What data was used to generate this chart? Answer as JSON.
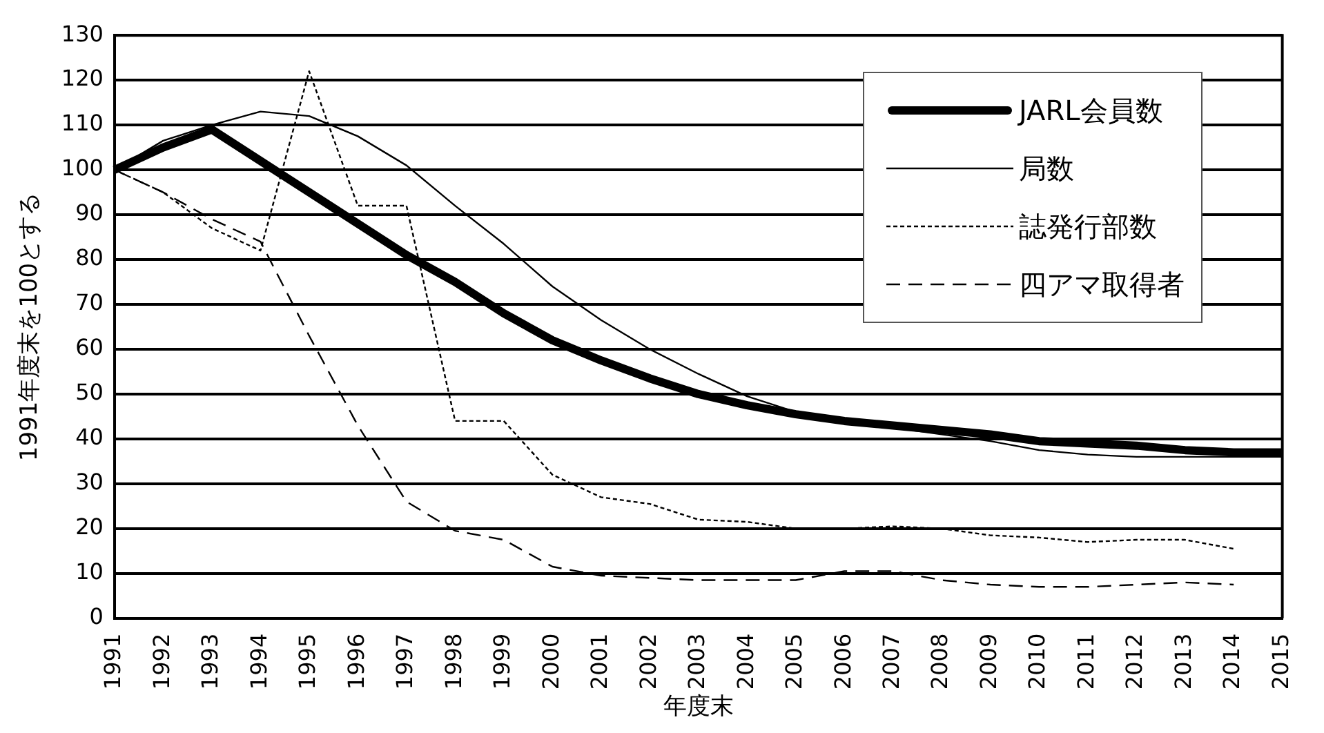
{
  "chart_data": {
    "type": "line",
    "xlabel": "年度末",
    "ylabel": "1991年度末を100とする",
    "categories": [
      "1991",
      "1992",
      "1993",
      "1994",
      "1995",
      "1996",
      "1997",
      "1998",
      "1999",
      "2000",
      "2001",
      "2002",
      "2003",
      "2004",
      "2005",
      "2006",
      "2007",
      "2008",
      "2009",
      "2010",
      "2011",
      "2012",
      "2013",
      "2014",
      "2015"
    ],
    "series": [
      {
        "name": "JARL会員数",
        "color": "#000000",
        "line_style": "solid",
        "values": [
          100,
          105,
          109,
          102,
          95,
          88,
          81,
          75,
          68,
          62,
          57.5,
          53.5,
          50,
          47.5,
          45.5,
          44,
          43,
          42,
          41,
          39.5,
          39,
          38.5,
          37.5,
          37,
          37
        ]
      },
      {
        "name": "局数",
        "color": "#000000",
        "line_style": "solid",
        "values": [
          100,
          106.5,
          110,
          113,
          112,
          107.5,
          101,
          92,
          83.5,
          74,
          66.5,
          60,
          54.5,
          49.5,
          46,
          44,
          42.5,
          41,
          39.5,
          37.5,
          36.5,
          36,
          36,
          36,
          36
        ]
      },
      {
        "name": "誌発行部数",
        "color": "#000000",
        "line_style": "dotted",
        "values": [
          100,
          95,
          87,
          82,
          122,
          92,
          92,
          44,
          44,
          32,
          27,
          25.5,
          22,
          21.5,
          20,
          20,
          20.5,
          20,
          18.5,
          18,
          17,
          17.5,
          17.5,
          15.5,
          null
        ]
      },
      {
        "name": "四アマ取得者",
        "color": "#000000",
        "line_style": "dashed",
        "values": [
          100,
          95,
          89,
          84,
          63,
          43,
          26,
          19.5,
          17.5,
          11.5,
          9.5,
          9,
          8.5,
          8.5,
          8.5,
          10.5,
          10.5,
          8.5,
          7.5,
          7,
          7,
          7.5,
          8,
          7.5,
          null
        ]
      }
    ],
    "ylim": [
      0,
      130
    ],
    "yticks": [
      0,
      10,
      20,
      30,
      40,
      50,
      60,
      70,
      80,
      90,
      100,
      110,
      120,
      130
    ],
    "grid": "y",
    "legend": "top right",
    "marker": "none"
  }
}
